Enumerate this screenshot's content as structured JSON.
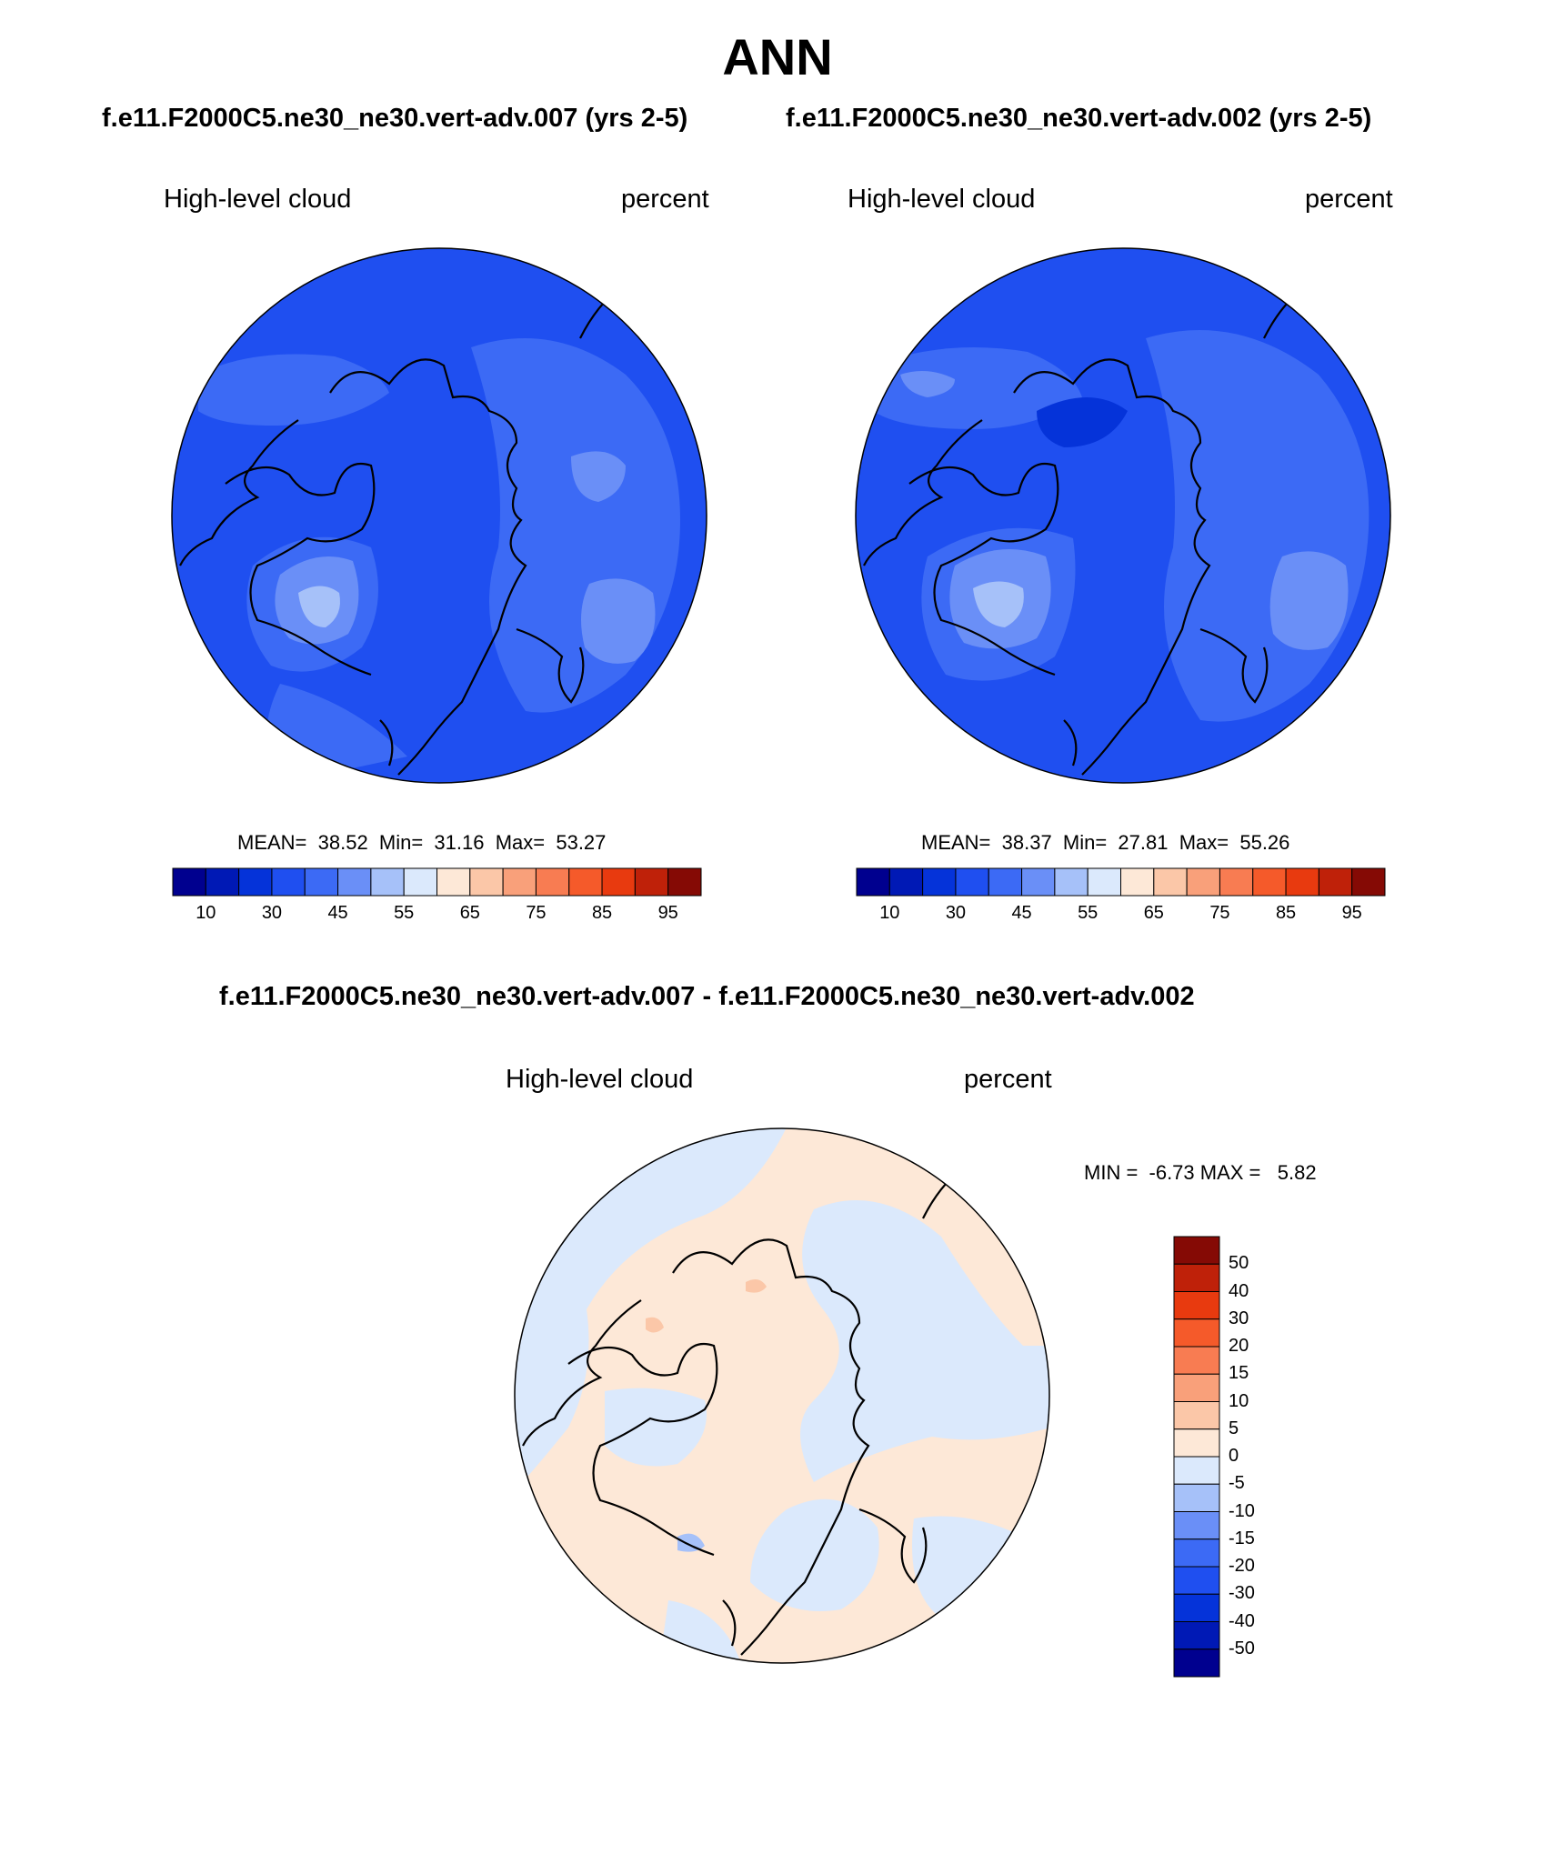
{
  "title": "ANN",
  "case_titles": {
    "left": "f.e11.F2000C5.ne30_ne30.vert-adv.007 (yrs 2-5)",
    "right": "f.e11.F2000C5.ne30_ne30.vert-adv.002 (yrs 2-5)",
    "diff": "f.e11.F2000C5.ne30_ne30.vert-adv.007 - f.e11.F2000C5.ne30_ne30.vert-adv.002"
  },
  "panels": [
    {
      "variable": "High-level cloud",
      "units": "percent",
      "stats_text": "MEAN=  38.52  Min=  31.16  Max=  53.27",
      "mean": 38.52,
      "min": 31.16,
      "max": 53.27
    },
    {
      "variable": "High-level cloud",
      "units": "percent",
      "stats_text": "MEAN=  38.37  Min=  27.81  Max=  55.26",
      "mean": 38.37,
      "min": 27.81,
      "max": 55.26
    },
    {
      "variable": "High-level cloud",
      "units": "percent",
      "stats_text": "MIN =  -6.73 MAX =   5.82",
      "min": -6.73,
      "max": 5.82
    }
  ],
  "colorbar_main": {
    "tick_labels": [
      "10",
      "30",
      "45",
      "55",
      "65",
      "75",
      "85",
      "95"
    ],
    "colors": [
      "#00008f",
      "#0019b5",
      "#0533d9",
      "#1f4ff0",
      "#3c6af5",
      "#6a8ff7",
      "#a6c1f9",
      "#dbe9fc",
      "#fde8d7",
      "#fbc7a8",
      "#f9a07a",
      "#f87c52",
      "#f55a2a",
      "#e83a0f",
      "#bf2109",
      "#850a05"
    ]
  },
  "colorbar_diff": {
    "tick_labels": [
      "50",
      "40",
      "30",
      "20",
      "15",
      "10",
      "5",
      "0",
      "-5",
      "-10",
      "-15",
      "-20",
      "-30",
      "-40",
      "-50"
    ],
    "colors": [
      "#850a05",
      "#bf2109",
      "#e83a0f",
      "#f55a2a",
      "#f87c52",
      "#f9a07a",
      "#fbc7a8",
      "#fde8d7",
      "#dbe9fc",
      "#a6c1f9",
      "#6a8ff7",
      "#3c6af5",
      "#1f4ff0",
      "#0533d9",
      "#0019b5",
      "#00008f"
    ]
  },
  "map_colors": {
    "base_dark": "#1f4ff0",
    "mid": "#3c6af5",
    "light": "#6a8ff7",
    "lighter": "#a6c1f9",
    "darker": "#0533d9",
    "diff_pos": "#fde8d7",
    "diff_neg": "#dbe9fc",
    "diff_pos2": "#fbc7a8",
    "diff_neg2": "#a6c1f9"
  }
}
